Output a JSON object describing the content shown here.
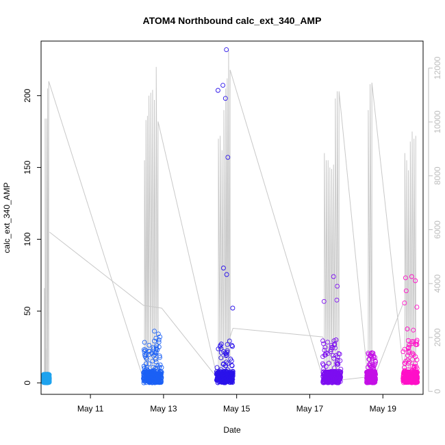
{
  "chart_data": {
    "type": "scatter",
    "title": "ATOM4 Northbound calc_ext_340_AMP",
    "xlabel": "Date",
    "ylabel": "calc_ext_340_AMP",
    "x_ticks": [
      "May 11",
      "May 13",
      "May 15",
      "May 17",
      "May 19"
    ],
    "x_tick_days": [
      11,
      13,
      15,
      17,
      19
    ],
    "xlim_days": [
      9.65,
      20.1
    ],
    "y_ticks": [
      0,
      50,
      100,
      150,
      200
    ],
    "ylim": [
      -8,
      238
    ],
    "y2_ticks": [
      0,
      2000,
      4000,
      6000,
      8000,
      10000,
      12000
    ],
    "y2lim": [
      -110,
      13000
    ],
    "grid": false,
    "legend": "none",
    "secondary_line_color": "#c8c8c8",
    "series": [
      {
        "color": "#1fa3ee",
        "day_range": [
          9.72,
          9.88
        ],
        "max_value": 6,
        "line_peaks": [
          [
            9.74,
            66
          ],
          [
            9.76,
            184
          ],
          [
            9.78,
            24
          ],
          [
            9.8,
            184
          ],
          [
            9.83,
            205
          ],
          [
            9.86,
            210
          ]
        ]
      },
      {
        "color": "#1b60f5",
        "day_range": [
          12.45,
          12.95
        ],
        "max_value": 36,
        "line_peaks": [
          [
            12.48,
            155
          ],
          [
            12.52,
            183
          ],
          [
            12.56,
            186
          ],
          [
            12.6,
            200
          ],
          [
            12.65,
            202
          ],
          [
            12.7,
            204
          ],
          [
            12.75,
            197
          ],
          [
            12.8,
            220
          ],
          [
            12.85,
            182
          ]
        ]
      },
      {
        "color": "#2a12ea",
        "day_range": [
          14.45,
          14.9
        ],
        "max_value": 232,
        "line_peaks": [
          [
            14.5,
            170
          ],
          [
            14.55,
            172
          ],
          [
            14.6,
            162
          ],
          [
            14.65,
            190
          ],
          [
            14.7,
            205
          ],
          [
            14.74,
            212
          ],
          [
            14.78,
            232
          ],
          [
            14.82,
            218
          ]
        ]
      },
      {
        "color": "#7d0ef0",
        "day_range": [
          17.35,
          17.85
        ],
        "max_value": 74,
        "line_peaks": [
          [
            17.4,
            160
          ],
          [
            17.45,
            155
          ],
          [
            17.5,
            155
          ],
          [
            17.55,
            150
          ],
          [
            17.6,
            149
          ],
          [
            17.65,
            152
          ],
          [
            17.7,
            198
          ],
          [
            17.75,
            203
          ],
          [
            17.8,
            203
          ]
        ]
      },
      {
        "color": "#c410e6",
        "day_range": [
          18.55,
          18.8
        ],
        "max_value": 21,
        "line_peaks": [
          [
            18.6,
            190
          ],
          [
            18.65,
            208
          ],
          [
            18.7,
            209
          ]
        ]
      },
      {
        "color": "#ff10c8",
        "day_range": [
          19.55,
          19.95
        ],
        "max_value": 74,
        "line_peaks": [
          [
            19.6,
            160
          ],
          [
            19.65,
            155
          ],
          [
            19.7,
            148
          ],
          [
            19.75,
            168
          ],
          [
            19.8,
            175
          ],
          [
            19.85,
            170
          ],
          [
            19.9,
            172
          ]
        ]
      }
    ],
    "secondary_line_connectors": [
      [
        9.88,
        105
      ],
      [
        12.45,
        54
      ],
      [
        12.95,
        52
      ],
      [
        14.45,
        4
      ],
      [
        14.9,
        38
      ],
      [
        17.35,
        32
      ],
      [
        17.85,
        2
      ],
      [
        18.55,
        4
      ],
      [
        18.8,
        6
      ],
      [
        19.55,
        55
      ]
    ]
  }
}
